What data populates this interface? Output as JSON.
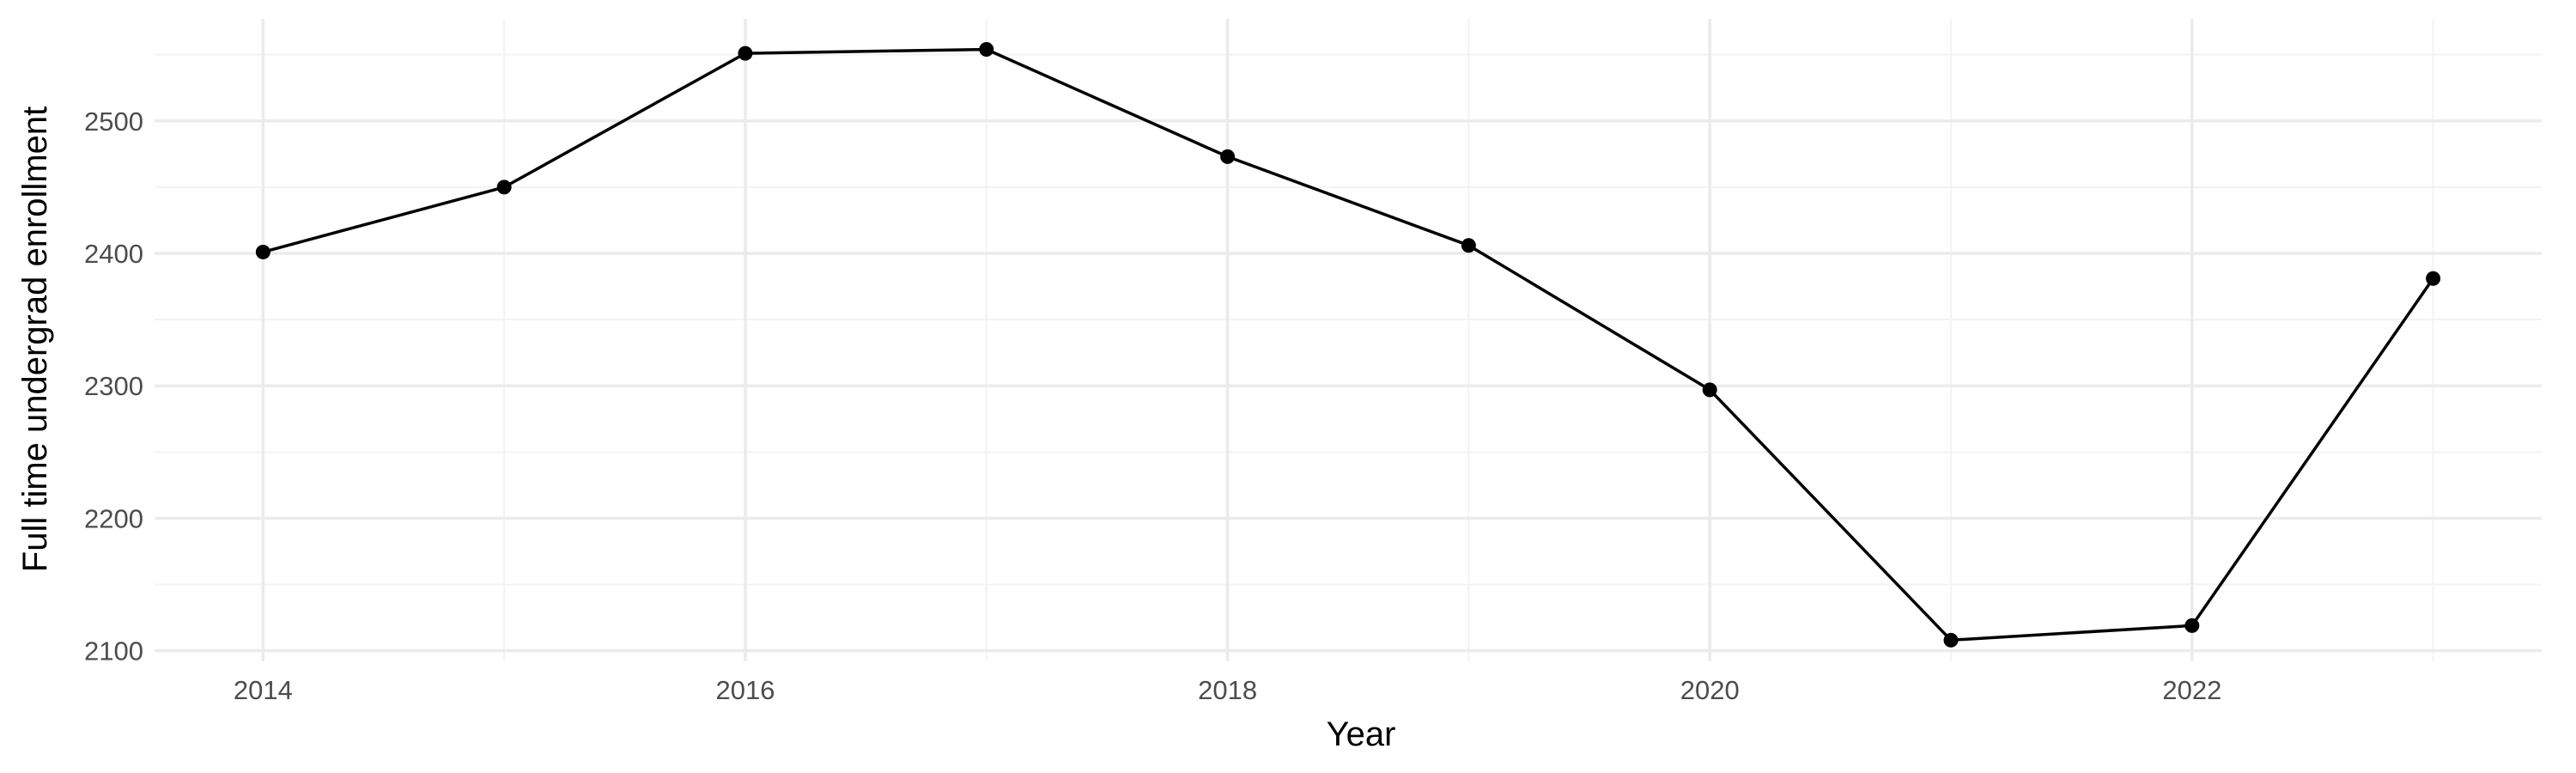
{
  "chart_data": {
    "type": "line",
    "title": "",
    "xlabel": "Year",
    "ylabel": "Full time undergrad enrollment",
    "x": [
      2014,
      2015,
      2016,
      2017,
      2018,
      2019,
      2020,
      2021,
      2022,
      2023
    ],
    "series": [
      {
        "values": [
          2401,
          2450,
          2551,
          2554,
          2473,
          2406,
          2297,
          2108,
          2119,
          2381
        ]
      }
    ],
    "xlim": [
      2013.55,
      2023.45
    ],
    "ylim": [
      2092,
      2577
    ],
    "x_ticks": [
      2014,
      2016,
      2018,
      2020,
      2022
    ],
    "x_tick_labels": [
      "2014",
      "2016",
      "2018",
      "2020",
      "2022"
    ],
    "x_minor_ticks": [
      2015,
      2017,
      2019,
      2021,
      2023
    ],
    "y_ticks": [
      2100,
      2200,
      2300,
      2400,
      2500
    ],
    "y_tick_labels": [
      "2100",
      "2200",
      "2300",
      "2400",
      "2500"
    ],
    "y_minor_ticks": [
      2150,
      2250,
      2350,
      2450,
      2550
    ],
    "grid": true,
    "legend": "none",
    "colors": {
      "line": "#000000",
      "point": "#000000",
      "grid_major": "#ebebeb",
      "grid_minor": "#f3f3f3",
      "tick_text": "#4d4d4d"
    }
  }
}
